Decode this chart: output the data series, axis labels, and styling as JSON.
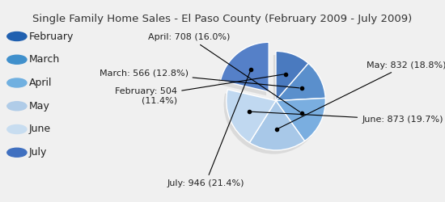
{
  "title": "Single Family Home Sales - El Paso County (February 2009 - July 2009)",
  "labels": [
    "February",
    "March",
    "April",
    "May",
    "June",
    "July"
  ],
  "values": [
    504,
    566,
    708,
    832,
    873,
    946
  ],
  "pie_colors": [
    "#4a7abf",
    "#5a8fcc",
    "#7aaee0",
    "#a8c8e8",
    "#c0d8f0",
    "#5580c8"
  ],
  "pie_edge_color": "#ffffff",
  "explode_index": 5,
  "explode_amount": 0.18,
  "background_color": "#f0f0f0",
  "title_fontsize": 9.5,
  "legend_fontsize": 9,
  "annot_fontsize": 8,
  "legend_colors": [
    "#2060b0",
    "#4090cc",
    "#70b0e0",
    "#b0cce8",
    "#c8ddf0",
    "#4070c0"
  ],
  "annotations": [
    {
      "label": "February: 504\n(11.4%)",
      "ha": "right"
    },
    {
      "label": "March: 566 (12.8%)",
      "ha": "right"
    },
    {
      "label": "April: 708 (16.0%)",
      "ha": "right"
    },
    {
      "label": "May: 832 (18.8%)",
      "ha": "left"
    },
    {
      "label": "June: 873 (19.7%)",
      "ha": "left"
    },
    {
      "label": "July: 946 (21.4%)",
      "ha": "right"
    }
  ]
}
